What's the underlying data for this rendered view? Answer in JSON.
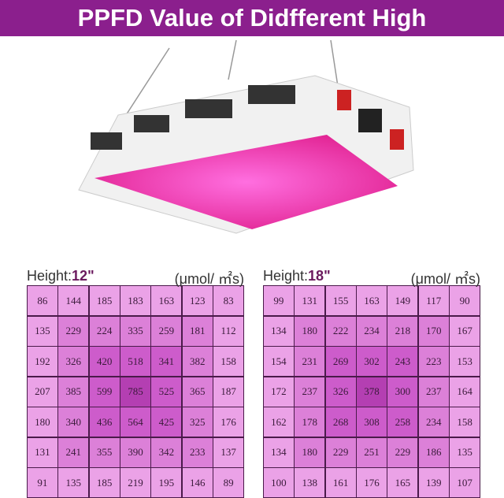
{
  "title": "PPFD Value of Didfferent High",
  "colors": {
    "banner": "#8b1f8d",
    "ring0": "#eba2e7",
    "ring1": "#dc80d8",
    "ring2": "#cd5ccb",
    "ring3": "#b43fb2"
  },
  "chart_data": [
    {
      "type": "heatmap",
      "label": "Height:",
      "height": "12\"",
      "unit": "(μmol/ ㎡s)",
      "values": [
        [
          86,
          144,
          185,
          183,
          163,
          123,
          83
        ],
        [
          135,
          229,
          224,
          335,
          259,
          181,
          112
        ],
        [
          192,
          326,
          420,
          518,
          341,
          382,
          158
        ],
        [
          207,
          385,
          599,
          785,
          525,
          365,
          187
        ],
        [
          180,
          340,
          436,
          564,
          425,
          325,
          176
        ],
        [
          131,
          241,
          355,
          390,
          342,
          233,
          137
        ],
        [
          91,
          135,
          185,
          219,
          195,
          146,
          89
        ]
      ]
    },
    {
      "type": "heatmap",
      "label": "Height:",
      "height": "18\"",
      "unit": "(μmol/ ㎡s)",
      "values": [
        [
          99,
          131,
          155,
          163,
          149,
          117,
          90
        ],
        [
          134,
          180,
          222,
          234,
          218,
          170,
          167
        ],
        [
          154,
          231,
          269,
          302,
          243,
          223,
          153
        ],
        [
          172,
          237,
          326,
          378,
          300,
          237,
          164
        ],
        [
          162,
          178,
          268,
          308,
          258,
          234,
          158
        ],
        [
          134,
          180,
          229,
          251,
          229,
          186,
          135
        ],
        [
          100,
          138,
          161,
          176,
          165,
          139,
          107
        ]
      ]
    }
  ]
}
